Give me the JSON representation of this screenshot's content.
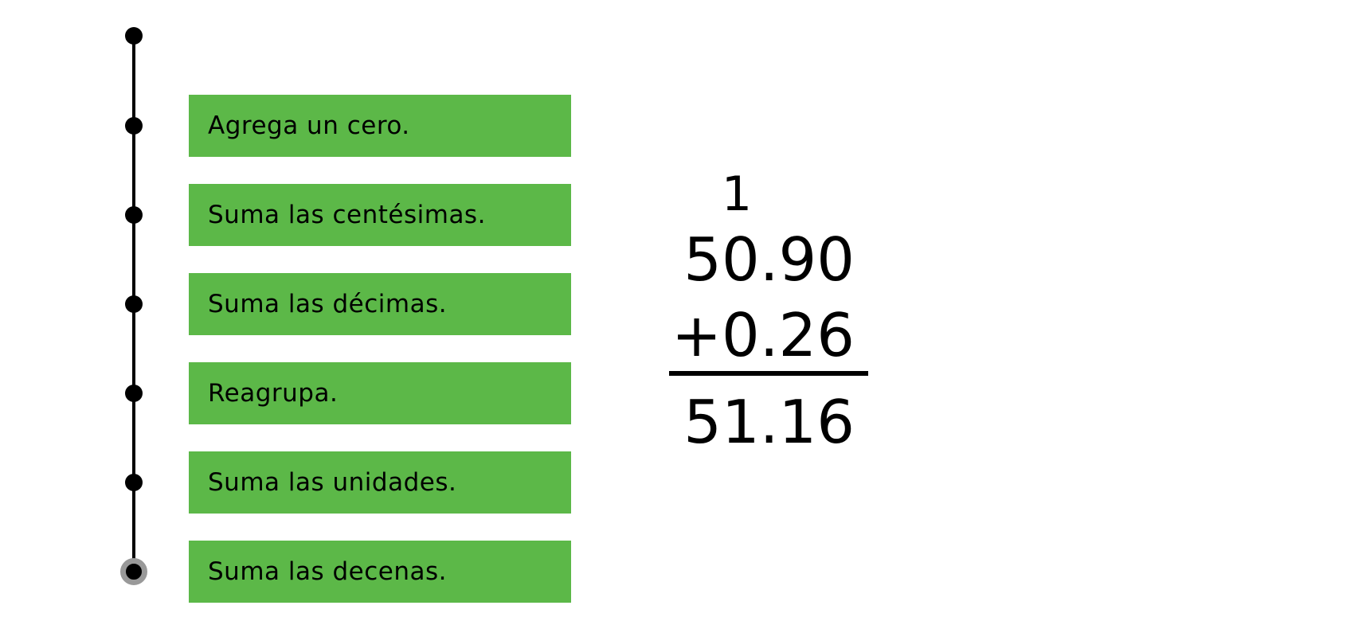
{
  "steps": {
    "items": [
      {
        "label": "Agrega un cero."
      },
      {
        "label": "Suma las centésimas."
      },
      {
        "label": "Suma las décimas."
      },
      {
        "label": "Reagrupa."
      },
      {
        "label": "Suma las unidades."
      },
      {
        "label": "Suma las decenas."
      }
    ]
  },
  "math": {
    "carry": "1",
    "addend_top": "50.90",
    "addend_bottom": "+0.26",
    "result": "51.16"
  },
  "colors": {
    "step_tile_green": "#5cb848",
    "active_node_ring_gray": "#999999",
    "ink_black": "#000000"
  }
}
